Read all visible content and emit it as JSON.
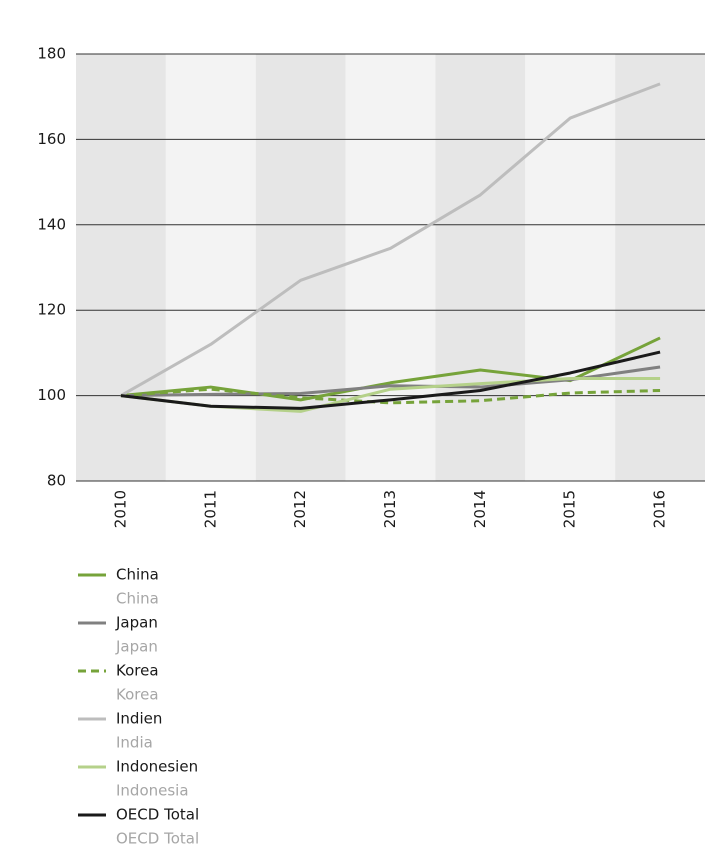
{
  "chart_data": {
    "type": "line",
    "categories": [
      "2010",
      "2011",
      "2012",
      "2013",
      "2014",
      "2015",
      "2016"
    ],
    "series": [
      {
        "name": "China",
        "label_en": "China",
        "color": "#76a33a",
        "dashed": false,
        "values": [
          100,
          102,
          99,
          103,
          106,
          103.5,
          113.5
        ]
      },
      {
        "name": "Japan",
        "label_en": "Japan",
        "color": "#808080",
        "dashed": false,
        "values": [
          100,
          100.3,
          100.5,
          102.3,
          102,
          103.7,
          106.7
        ]
      },
      {
        "name": "Korea",
        "label_en": "Korea",
        "color": "#76a33a",
        "dashed": true,
        "values": [
          100,
          101.5,
          99.5,
          98.3,
          98.8,
          100.6,
          101.2
        ]
      },
      {
        "name": "Indien",
        "label_en": "India",
        "color": "#bdbdbd",
        "dashed": false,
        "values": [
          100,
          112,
          127,
          134.5,
          147,
          165,
          173
        ]
      },
      {
        "name": "Indonesien",
        "label_en": "Indonesia",
        "color": "#b5d18a",
        "dashed": false,
        "values": [
          100,
          97.5,
          96.3,
          101.5,
          102.8,
          104,
          104
        ]
      },
      {
        "name": "OECD Total",
        "label_en": "OECD Total",
        "color": "#1a1a1a",
        "dashed": false,
        "values": [
          100,
          97.5,
          97,
          99,
          101.2,
          105.3,
          110.2
        ]
      }
    ],
    "ylim": [
      80,
      180
    ],
    "yticks": [
      80,
      100,
      120,
      140,
      160,
      180
    ],
    "grid": true,
    "band_colors": [
      "#e6e6e6",
      "#f3f3f3"
    ]
  }
}
